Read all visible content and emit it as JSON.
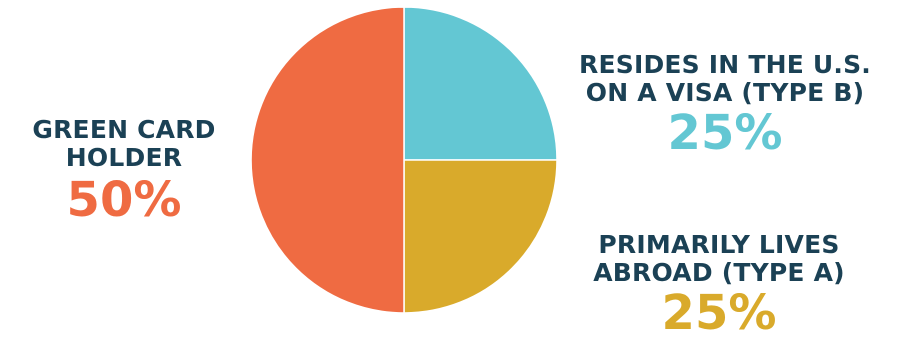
{
  "chart_data": {
    "type": "pie",
    "slices": [
      {
        "label": "RESIDES IN THE U.S. ON A VISA (TYPE B)",
        "label_lines": [
          "RESIDES IN THE U.S.",
          "ON A VISA (TYPE B)"
        ],
        "value": 25,
        "value_label": "25%",
        "color": "#63c7d3"
      },
      {
        "label": "PRIMARILY LIVES ABROAD (TYPE A)",
        "label_lines": [
          "PRIMARILY LIVES",
          "ABROAD (TYPE A)"
        ],
        "value": 25,
        "value_label": "25%",
        "color": "#d9aa2b"
      },
      {
        "label": "GREEN CARD HOLDER",
        "label_lines": [
          "GREEN CARD",
          "HOLDER"
        ],
        "value": 50,
        "value_label": "50%",
        "color": "#ef6b42"
      }
    ],
    "start_angle": "12 o'clock",
    "direction": "clockwise",
    "label_color": "#1b4155"
  }
}
